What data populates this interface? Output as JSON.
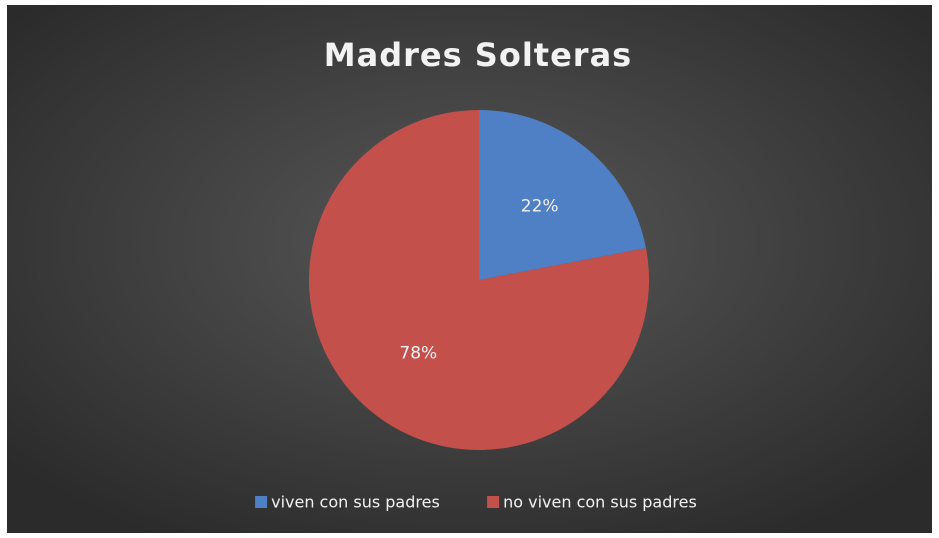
{
  "chart_data": {
    "type": "pie",
    "title": "Madres Solteras",
    "categories": [
      "viven con sus padres",
      "no viven con sus padres"
    ],
    "values": [
      22,
      78
    ],
    "value_labels": [
      "22%",
      "78%"
    ],
    "colors": [
      "#4f7fc5",
      "#c4504c"
    ],
    "legend": "bottom"
  }
}
